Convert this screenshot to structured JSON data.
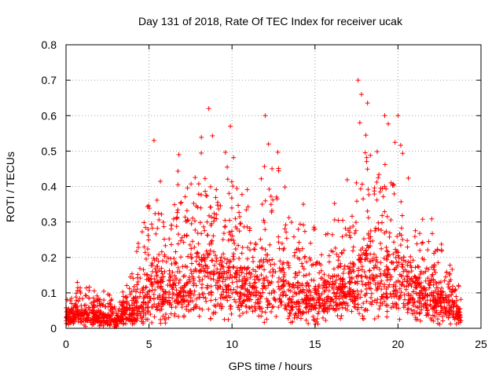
{
  "chart_data": {
    "type": "scatter",
    "title": "Day 131 of 2018, Rate Of TEC Index for receiver ucak",
    "xlabel": "GPS time / hours",
    "ylabel": "ROTI / TECUs",
    "xlim": [
      0,
      25
    ],
    "ylim": [
      0,
      0.8
    ],
    "xticks": [
      0,
      5,
      10,
      15,
      20,
      25
    ],
    "yticks": [
      0,
      0.1,
      0.2,
      0.3,
      0.4,
      0.5,
      0.6,
      0.7,
      0.8
    ],
    "xtick_labels": [
      "0",
      "5",
      "10",
      "15",
      "20",
      "25"
    ],
    "ytick_labels": [
      "0",
      "0.1",
      "0.2",
      "0.3",
      "0.4",
      "0.5",
      "0.6",
      "0.7",
      "0.8"
    ],
    "grid": true,
    "marker": "+",
    "color": "#ff0000",
    "envelope": {
      "description": "approximate upper envelope of ROTI values per hour",
      "x": [
        0,
        0.5,
        1,
        1.5,
        2,
        2.5,
        3,
        3.5,
        4,
        4.5,
        5,
        5.5,
        6,
        6.5,
        7,
        7.5,
        8,
        8.5,
        9,
        9.5,
        10,
        10.5,
        11,
        11.5,
        12,
        12.5,
        13,
        13.5,
        14,
        14.5,
        15,
        15.5,
        16,
        16.5,
        17,
        17.5,
        18,
        18.5,
        19,
        19.5,
        20,
        20.5,
        21,
        21.5,
        22,
        22.5,
        23,
        23.5,
        23.8
      ],
      "upper": [
        0.11,
        0.14,
        0.15,
        0.12,
        0.1,
        0.11,
        0.06,
        0.12,
        0.22,
        0.25,
        0.4,
        0.52,
        0.28,
        0.49,
        0.4,
        0.42,
        0.52,
        0.62,
        0.54,
        0.48,
        0.57,
        0.45,
        0.4,
        0.3,
        0.6,
        0.55,
        0.46,
        0.3,
        0.35,
        0.26,
        0.29,
        0.22,
        0.4,
        0.3,
        0.48,
        0.42,
        0.7,
        0.65,
        0.55,
        0.6,
        0.6,
        0.45,
        0.38,
        0.32,
        0.32,
        0.25,
        0.21,
        0.14,
        0.12
      ],
      "typical_low": [
        0.02,
        0.02,
        0.02,
        0.02,
        0.02,
        0.01,
        0.01,
        0.02,
        0.02,
        0.03,
        0.04,
        0.05,
        0.05,
        0.05,
        0.06,
        0.06,
        0.07,
        0.07,
        0.06,
        0.06,
        0.06,
        0.05,
        0.05,
        0.05,
        0.05,
        0.05,
        0.05,
        0.04,
        0.04,
        0.04,
        0.04,
        0.04,
        0.05,
        0.05,
        0.05,
        0.05,
        0.06,
        0.06,
        0.06,
        0.05,
        0.05,
        0.05,
        0.05,
        0.05,
        0.04,
        0.04,
        0.03,
        0.03,
        0.02
      ]
    },
    "notable_points": [
      {
        "x": 17.6,
        "y": 0.7
      },
      {
        "x": 17.8,
        "y": 0.66
      },
      {
        "x": 8.6,
        "y": 0.62
      },
      {
        "x": 12.0,
        "y": 0.6
      },
      {
        "x": 20.0,
        "y": 0.6
      },
      {
        "x": 19.2,
        "y": 0.6
      },
      {
        "x": 17.7,
        "y": 0.58
      },
      {
        "x": 9.9,
        "y": 0.57
      },
      {
        "x": 5.3,
        "y": 0.53
      },
      {
        "x": 12.2,
        "y": 0.52
      },
      {
        "x": 6.8,
        "y": 0.49
      },
      {
        "x": 14.3,
        "y": 0.35
      }
    ]
  }
}
